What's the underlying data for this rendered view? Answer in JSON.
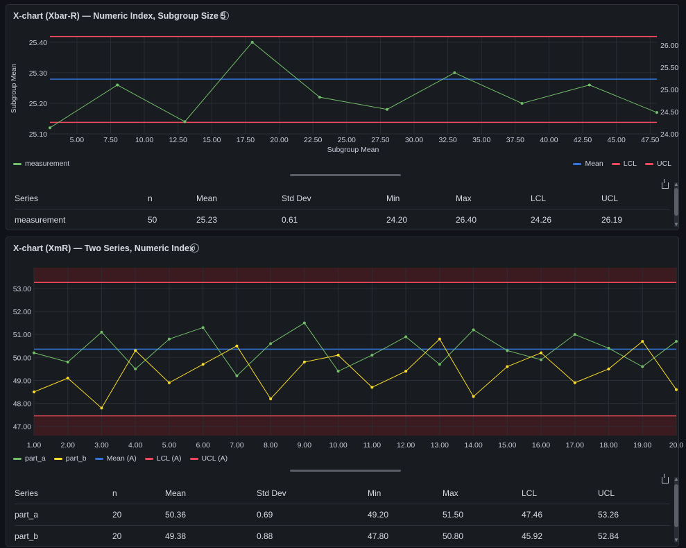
{
  "panels": [
    {
      "title": "X-chart (Xbar-R) — Numeric Index, Subgroup Size 5",
      "legend_left": [
        {
          "label": "measurement",
          "color": "#73bf69"
        }
      ],
      "legend_right": [
        {
          "label": "Mean",
          "color": "#3274d9"
        },
        {
          "label": "LCL",
          "color": "#f2495c"
        },
        {
          "label": "UCL",
          "color": "#f2495c"
        }
      ],
      "table": {
        "headers": [
          "Series",
          "n",
          "Mean",
          "Std Dev",
          "Min",
          "Max",
          "LCL",
          "UCL"
        ],
        "rows": [
          [
            "measurement",
            "50",
            "25.23",
            "0.61",
            "24.20",
            "26.40",
            "24.26",
            "26.19"
          ]
        ]
      }
    },
    {
      "title": "X-chart (XmR) — Two Series, Numeric Index",
      "legend": [
        {
          "label": "part_a",
          "color": "#73bf69"
        },
        {
          "label": "part_b",
          "color": "#fade2a"
        },
        {
          "label": "Mean (A)",
          "color": "#3274d9"
        },
        {
          "label": "LCL (A)",
          "color": "#f2495c"
        },
        {
          "label": "UCL (A)",
          "color": "#f2495c"
        }
      ],
      "table": {
        "headers": [
          "Series",
          "n",
          "Mean",
          "Std Dev",
          "Min",
          "Max",
          "LCL",
          "UCL"
        ],
        "rows": [
          [
            "part_a",
            "20",
            "50.36",
            "0.69",
            "49.20",
            "51.50",
            "47.46",
            "53.26"
          ],
          [
            "part_b",
            "20",
            "49.38",
            "0.88",
            "47.80",
            "50.80",
            "45.92",
            "52.84"
          ]
        ]
      }
    }
  ],
  "chart_data": [
    {
      "type": "line",
      "title": "X-chart (Xbar-R) — Numeric Index, Subgroup Size 5",
      "xlabel": "Subgroup Mean",
      "ylabel": "Subgroup Mean",
      "x_ticks": [
        "5.00",
        "7.50",
        "10.00",
        "12.50",
        "15.00",
        "17.50",
        "20.00",
        "22.50",
        "25.00",
        "27.50",
        "30.00",
        "32.50",
        "35.00",
        "37.50",
        "40.00",
        "42.50",
        "45.00",
        "47.50"
      ],
      "y_ticks": [
        "25.10",
        "25.20",
        "25.30",
        "25.40"
      ],
      "y2_ticks": [
        "24.00",
        "24.50",
        "25.00",
        "25.50",
        "26.00"
      ],
      "xlim": [
        3,
        48
      ],
      "ylim": [
        25.1,
        25.42
      ],
      "y2lim": [
        24.0,
        26.2
      ],
      "grid": true,
      "series": [
        {
          "name": "measurement",
          "color": "#73bf69",
          "x": [
            3,
            8,
            13,
            18,
            23,
            28,
            33,
            38,
            43,
            48
          ],
          "y": [
            25.12,
            25.26,
            25.14,
            25.4,
            25.22,
            25.18,
            25.3,
            25.2,
            25.26,
            25.17
          ]
        }
      ],
      "lines": [
        {
          "name": "Mean",
          "axis": "y2",
          "value": 25.23,
          "color": "#3274d9"
        },
        {
          "name": "LCL",
          "axis": "y2",
          "value": 24.26,
          "color": "#f2495c"
        },
        {
          "name": "UCL",
          "axis": "y2",
          "value": 26.19,
          "color": "#f2495c"
        }
      ]
    },
    {
      "type": "line",
      "title": "X-chart (XmR) — Two Series, Numeric Index",
      "x_ticks": [
        "1.00",
        "2.00",
        "3.00",
        "4.00",
        "5.00",
        "6.00",
        "7.00",
        "8.00",
        "9.00",
        "10.00",
        "11.00",
        "12.00",
        "13.00",
        "14.00",
        "15.00",
        "16.00",
        "17.00",
        "18.00",
        "19.00",
        "20.0"
      ],
      "y_ticks": [
        "47.00",
        "48.00",
        "49.00",
        "50.00",
        "51.00",
        "52.00",
        "53.00"
      ],
      "xlim": [
        1,
        20
      ],
      "ylim": [
        46.6,
        53.9
      ],
      "grid": true,
      "series": [
        {
          "name": "part_a",
          "color": "#73bf69",
          "x": [
            1,
            2,
            3,
            4,
            5,
            6,
            7,
            8,
            9,
            10,
            11,
            12,
            13,
            14,
            15,
            16,
            17,
            18,
            19,
            20
          ],
          "y": [
            50.2,
            49.8,
            51.1,
            49.5,
            50.8,
            51.3,
            49.2,
            50.6,
            51.5,
            49.4,
            50.1,
            50.9,
            49.7,
            51.2,
            50.3,
            49.9,
            51.0,
            50.4,
            49.6,
            50.7
          ]
        },
        {
          "name": "part_b",
          "color": "#fade2a",
          "x": [
            1,
            2,
            3,
            4,
            5,
            6,
            7,
            8,
            9,
            10,
            11,
            12,
            13,
            14,
            15,
            16,
            17,
            18,
            19,
            20
          ],
          "y": [
            48.5,
            49.1,
            47.8,
            50.3,
            48.9,
            49.7,
            50.5,
            48.2,
            49.8,
            50.1,
            48.7,
            49.4,
            50.8,
            48.3,
            49.6,
            50.2,
            48.9,
            49.5,
            50.7,
            48.6
          ]
        }
      ],
      "lines": [
        {
          "name": "Mean (A)",
          "value": 50.36,
          "color": "#3274d9"
        },
        {
          "name": "LCL (A)",
          "value": 47.46,
          "color": "#f2495c"
        },
        {
          "name": "UCL (A)",
          "value": 53.26,
          "color": "#f2495c"
        }
      ]
    }
  ]
}
